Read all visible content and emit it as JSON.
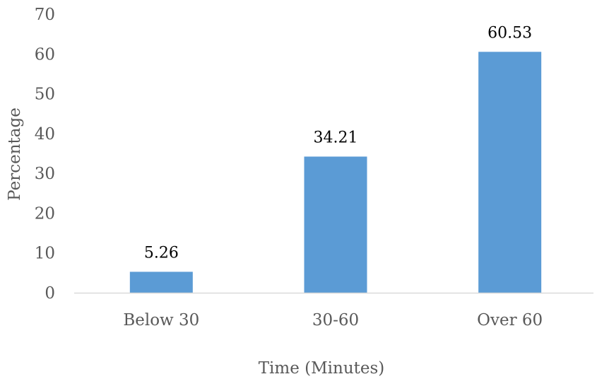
{
  "chart_data": {
    "type": "bar",
    "title": "",
    "xlabel": "Time (Minutes)",
    "ylabel": "Percentage",
    "categories": [
      "Below 30",
      "30-60",
      "Over 60"
    ],
    "values": [
      5.26,
      34.21,
      60.53
    ],
    "data_labels": [
      "5.26",
      "34.21",
      "60.53"
    ],
    "ylim": [
      0,
      70
    ],
    "yticks": [
      0,
      10,
      20,
      30,
      40,
      50,
      60,
      70
    ],
    "grid": false,
    "legend": "none",
    "colors": {
      "bar": "#5b9bd5",
      "axis": "#d9d9d9"
    }
  }
}
